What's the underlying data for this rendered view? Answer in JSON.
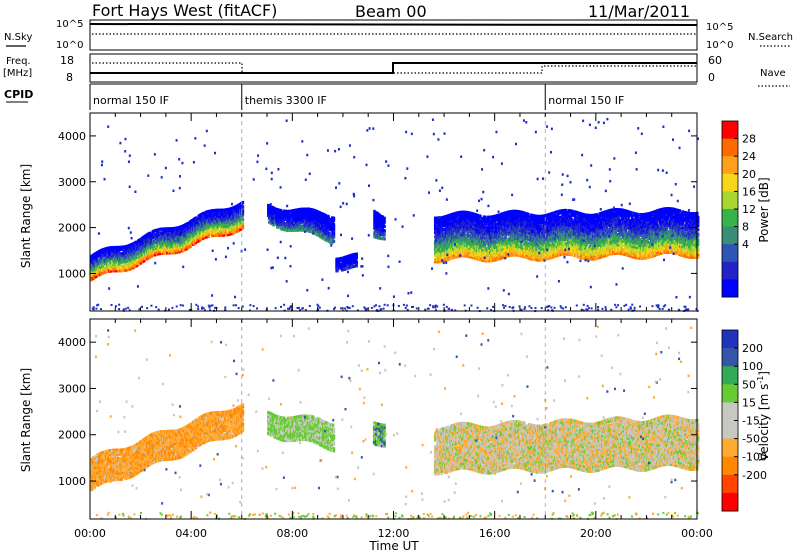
{
  "header": {
    "station": "Fort Hays West (fitACF)",
    "beam": "Beam 00",
    "date": "11/Mar/2011"
  },
  "strip_labels": {
    "nsky": "N.Sky",
    "nsearch": "N.Search",
    "freq_line1": "Freq.",
    "freq_line2": "[MHz]",
    "nave": "Nave",
    "cpid": "CPID",
    "noise_tick_hi": "10^5",
    "noise_tick_lo": "10^0",
    "freq_tick_hi": "18",
    "freq_tick_lo": "8",
    "nave_tick_hi": "60",
    "nave_tick_lo": "0"
  },
  "cpid_segments": [
    {
      "label": "normal 150 IF",
      "start_hour": 0
    },
    {
      "label": "themis 3300 IF",
      "start_hour": 6
    },
    {
      "label": "normal 150 IF",
      "start_hour": 18
    }
  ],
  "xaxis": {
    "label": "Time UT",
    "tick_labels": [
      "00:00",
      "04:00",
      "08:00",
      "12:00",
      "16:00",
      "20:00",
      "00:00"
    ],
    "tick_hours": [
      0,
      4,
      8,
      12,
      16,
      20,
      24
    ],
    "xlim": [
      0,
      24
    ]
  },
  "yaxis": {
    "label": "Slant Range [km]",
    "tick_labels": [
      "1000",
      "2000",
      "3000",
      "4000"
    ],
    "tick_values": [
      1000,
      2000,
      3000,
      4000
    ],
    "ylim": [
      180,
      4500
    ]
  },
  "power_scale": {
    "label": "Power [dB]",
    "tick_labels": [
      "28",
      "24",
      "20",
      "16",
      "12",
      "8",
      "4"
    ],
    "colors": [
      "#ff0000",
      "#ff6a00",
      "#ff9f1a",
      "#f7d51a",
      "#a9d62f",
      "#36b34a",
      "#3a8e78",
      "#2e54b5",
      "#2323c8",
      "#0000ff"
    ]
  },
  "velocity_scale": {
    "label": "Velocity [m s^-1]",
    "tick_labels": [
      "200",
      "100",
      "50",
      "15",
      "-15",
      "-50",
      "-100",
      "-200"
    ],
    "colors": [
      "#2233bb",
      "#3355aa",
      "#33aa55",
      "#66cc33",
      "#c8c8c0",
      "#c8c8c0",
      "#ffaa33",
      "#ff8800",
      "#ff4400",
      "#ff0000"
    ]
  },
  "chart_data": [
    {
      "type": "heatmap",
      "name": "power",
      "title": "",
      "xlabel": "Time UT",
      "ylabel": "Slant Range [km]",
      "xlim": [
        0,
        24
      ],
      "ylim": [
        180,
        4500
      ],
      "colorbar_label": "Power [dB]",
      "bands": [
        {
          "hour_start": 0.0,
          "hour_end": 6.0,
          "range_start": [
            850,
            1400
          ],
          "range_end": [
            2000,
            2600
          ],
          "peak_db": 26
        },
        {
          "hour_start": 7.0,
          "hour_end": 9.6,
          "range_start": [
            2100,
            2500
          ],
          "range_end": [
            1700,
            2300
          ],
          "peak_db": 12
        },
        {
          "hour_start": 9.7,
          "hour_end": 10.5,
          "range_start": [
            1100,
            1400
          ],
          "range_end": [
            1100,
            1400
          ],
          "peak_db": 6
        },
        {
          "hour_start": 11.2,
          "hour_end": 11.6,
          "range_start": [
            1800,
            2400
          ],
          "range_end": [
            1800,
            2300
          ],
          "peak_db": 10
        },
        {
          "hour_start": 13.6,
          "hour_end": 24.0,
          "range_start": [
            1300,
            2300
          ],
          "range_end": [
            1400,
            2400
          ],
          "peak_db": 24
        }
      ]
    },
    {
      "type": "heatmap",
      "name": "velocity",
      "title": "",
      "xlabel": "Time UT",
      "ylabel": "Slant Range [km]",
      "xlim": [
        0,
        24
      ],
      "ylim": [
        180,
        4500
      ],
      "colorbar_label": "Velocity [m s^-1]",
      "bands": [
        {
          "hour_start": 0.0,
          "hour_end": 6.0,
          "range_start": [
            800,
            1500
          ],
          "range_end": [
            2100,
            2700
          ],
          "dominant_velocity": -40
        },
        {
          "hour_start": 7.0,
          "hour_end": 9.6,
          "range_start": [
            2000,
            2500
          ],
          "range_end": [
            1700,
            2300
          ],
          "dominant_velocity": 20
        },
        {
          "hour_start": 11.2,
          "hour_end": 11.6,
          "range_start": [
            1800,
            2300
          ],
          "range_end": [
            1800,
            2300
          ],
          "dominant_velocity": 40
        },
        {
          "hour_start": 13.6,
          "hour_end": 24.0,
          "range_start": [
            1200,
            2200
          ],
          "range_end": [
            1300,
            2400
          ],
          "dominant_velocity": -5
        }
      ]
    }
  ]
}
